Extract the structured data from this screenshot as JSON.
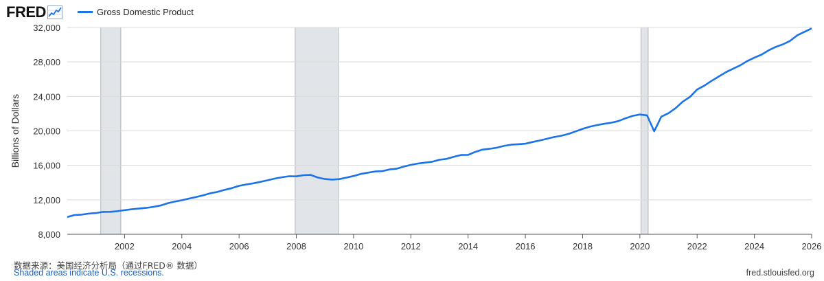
{
  "brand": {
    "logo_text": "FRED",
    "logo_icon": "line-chart-icon"
  },
  "footer": {
    "source": "数据来源：美国经济分析局（通过FRED® 数据）",
    "note": "Shaded areas indicate U.S. recessions.",
    "url": "fred.stlouisfed.org"
  },
  "colors": {
    "line": "#1a73e8",
    "recession": "#e1e5ea",
    "grid": "#d9d9d9"
  },
  "chart_data": {
    "type": "line",
    "title": "",
    "ylabel": "Billions of Dollars",
    "xlabel": "",
    "xlim": [
      2000.0,
      2026.0
    ],
    "ylim": [
      8000,
      32000
    ],
    "ytick_labels": [
      "8,000",
      "12,000",
      "16,000",
      "20,000",
      "24,000",
      "28,000",
      "32,000"
    ],
    "yticks": [
      8000,
      12000,
      16000,
      20000,
      24000,
      28000,
      32000
    ],
    "xtick_labels": [
      "2002",
      "2004",
      "2006",
      "2008",
      "2010",
      "2012",
      "2014",
      "2016",
      "2018",
      "2020",
      "2022",
      "2024",
      "2026"
    ],
    "xticks": [
      2002,
      2004,
      2006,
      2008,
      2010,
      2012,
      2014,
      2016,
      2018,
      2020,
      2022,
      2024,
      2026
    ],
    "grid": "horizontal",
    "legend": "top-left",
    "recessions": [
      [
        2001.17,
        2001.87
      ],
      [
        2007.96,
        2009.46
      ],
      [
        2020.04,
        2020.29
      ]
    ],
    "series": [
      {
        "name": "Gross Domestic Product",
        "x": [
          2000.0,
          2000.25,
          2000.5,
          2000.75,
          2001.0,
          2001.25,
          2001.5,
          2001.75,
          2002.0,
          2002.25,
          2002.5,
          2002.75,
          2003.0,
          2003.25,
          2003.5,
          2003.75,
          2004.0,
          2004.25,
          2004.5,
          2004.75,
          2005.0,
          2005.25,
          2005.5,
          2005.75,
          2006.0,
          2006.25,
          2006.5,
          2006.75,
          2007.0,
          2007.25,
          2007.5,
          2007.75,
          2008.0,
          2008.25,
          2008.5,
          2008.75,
          2009.0,
          2009.25,
          2009.5,
          2009.75,
          2010.0,
          2010.25,
          2010.5,
          2010.75,
          2011.0,
          2011.25,
          2011.5,
          2011.75,
          2012.0,
          2012.25,
          2012.5,
          2012.75,
          2013.0,
          2013.25,
          2013.5,
          2013.75,
          2014.0,
          2014.25,
          2014.5,
          2014.75,
          2015.0,
          2015.25,
          2015.5,
          2015.75,
          2016.0,
          2016.25,
          2016.5,
          2016.75,
          2017.0,
          2017.25,
          2017.5,
          2017.75,
          2018.0,
          2018.25,
          2018.5,
          2018.75,
          2019.0,
          2019.25,
          2019.5,
          2019.75,
          2020.0,
          2020.25,
          2020.5,
          2020.75,
          2021.0,
          2021.25,
          2021.5,
          2021.75,
          2022.0,
          2022.25,
          2022.5,
          2022.75,
          2023.0,
          2023.25,
          2023.5,
          2023.75,
          2024.0,
          2024.25,
          2024.5,
          2024.75,
          2025.0,
          2025.25,
          2025.5,
          2025.75,
          2026.0
        ],
        "values": [
          10000,
          10230,
          10280,
          10400,
          10460,
          10600,
          10610,
          10680,
          10800,
          10900,
          10980,
          11060,
          11180,
          11330,
          11600,
          11790,
          11950,
          12150,
          12320,
          12530,
          12770,
          12920,
          13160,
          13360,
          13620,
          13780,
          13920,
          14080,
          14270,
          14470,
          14620,
          14740,
          14720,
          14860,
          14890,
          14590,
          14410,
          14350,
          14400,
          14580,
          14760,
          15000,
          15150,
          15290,
          15330,
          15520,
          15610,
          15850,
          16050,
          16210,
          16320,
          16420,
          16650,
          16750,
          16990,
          17200,
          17210,
          17560,
          17820,
          17920,
          18050,
          18250,
          18400,
          18450,
          18510,
          18710,
          18880,
          19080,
          19280,
          19430,
          19640,
          19940,
          20230,
          20490,
          20670,
          20820,
          20950,
          21140,
          21460,
          21750,
          21900,
          21800,
          19950,
          21650,
          22050,
          22650,
          23400,
          23950,
          24800,
          25250,
          25800,
          26300,
          26800,
          27200,
          27600,
          28100,
          28500,
          28850,
          29350,
          29750,
          30050,
          30450,
          31100,
          31500,
          31900
        ]
      }
    ]
  }
}
